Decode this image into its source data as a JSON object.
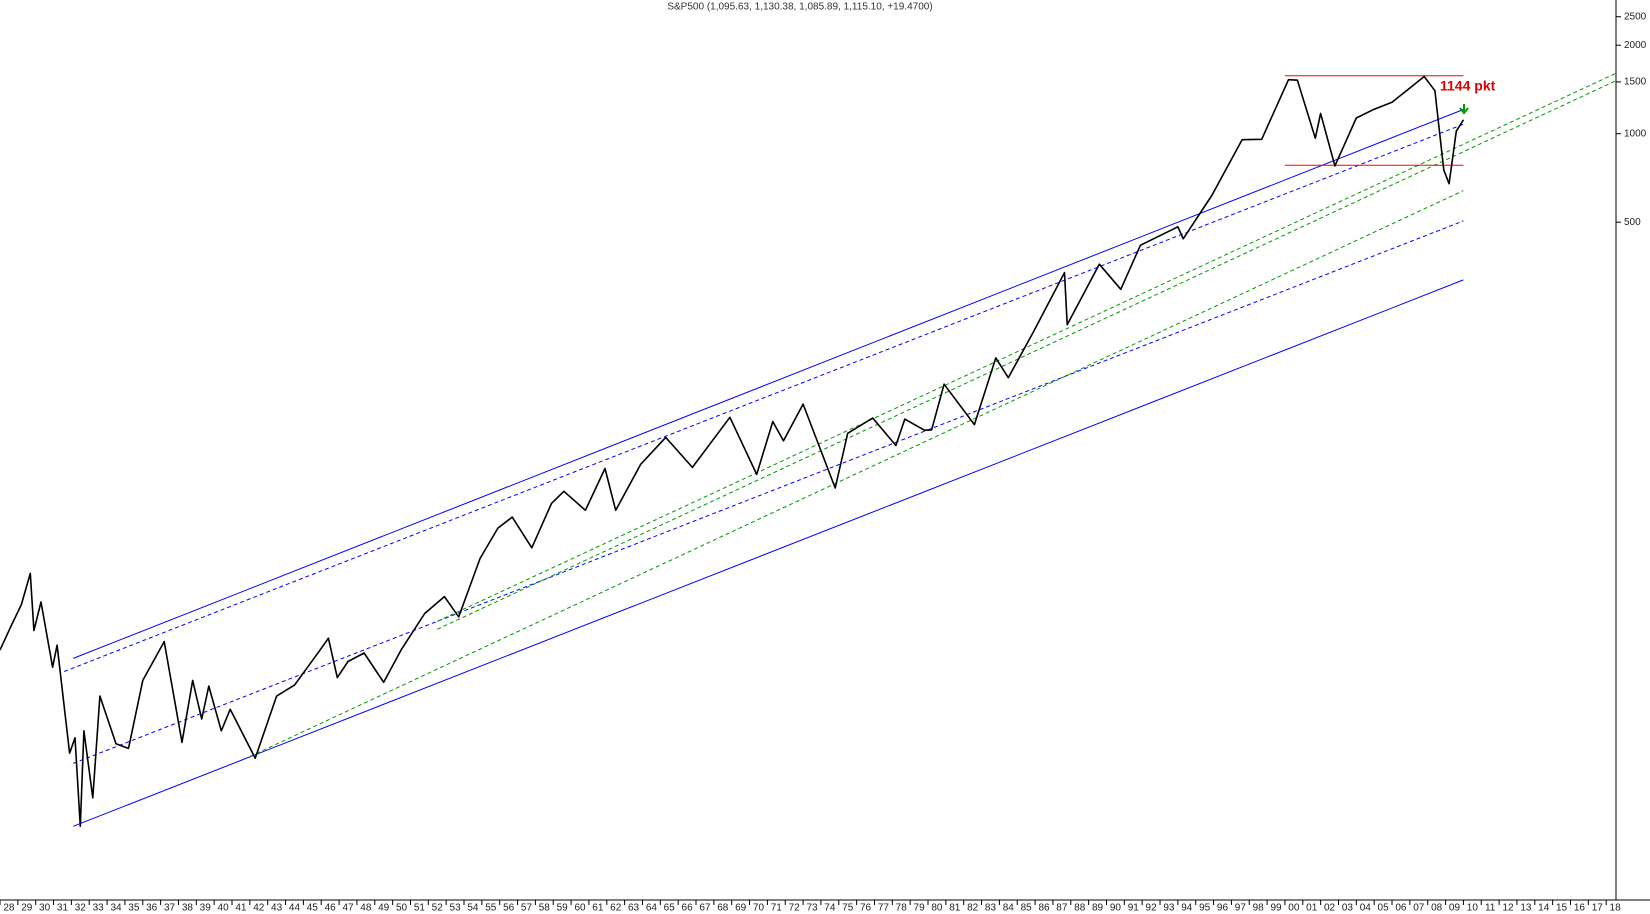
{
  "chart_data": {
    "type": "line",
    "title": "S&P500 (1,095.63, 1,130.38, 1,085.89, 1,115.10, +19.4700)",
    "log_scale": true,
    "grid": false,
    "xlim": [
      1928,
      2018.55
    ],
    "ylim": [
      2.47,
      2850
    ],
    "yticks": [
      500,
      1000,
      1500,
      2000,
      2500
    ],
    "xticks": [
      {
        "value": 1928,
        "label": "28"
      },
      {
        "value": 1929,
        "label": "29"
      },
      {
        "value": 1930,
        "label": "30"
      },
      {
        "value": 1931,
        "label": "31"
      },
      {
        "value": 1932,
        "label": "32"
      },
      {
        "value": 1933,
        "label": "33"
      },
      {
        "value": 1934,
        "label": "34"
      },
      {
        "value": 1935,
        "label": "35"
      },
      {
        "value": 1936,
        "label": "36"
      },
      {
        "value": 1937,
        "label": "37"
      },
      {
        "value": 1938,
        "label": "38"
      },
      {
        "value": 1939,
        "label": "39"
      },
      {
        "value": 1940,
        "label": "40"
      },
      {
        "value": 1941,
        "label": "41"
      },
      {
        "value": 1942,
        "label": "42"
      },
      {
        "value": 1943,
        "label": "43"
      },
      {
        "value": 1944,
        "label": "44"
      },
      {
        "value": 1945,
        "label": "45"
      },
      {
        "value": 1946,
        "label": "46"
      },
      {
        "value": 1947,
        "label": "47"
      },
      {
        "value": 1948,
        "label": "48"
      },
      {
        "value": 1949,
        "label": "49"
      },
      {
        "value": 1950,
        "label": "50"
      },
      {
        "value": 1951,
        "label": "51"
      },
      {
        "value": 1952,
        "label": "52"
      },
      {
        "value": 1953,
        "label": "53"
      },
      {
        "value": 1954,
        "label": "54"
      },
      {
        "value": 1955,
        "label": "55"
      },
      {
        "value": 1956,
        "label": "56"
      },
      {
        "value": 1957,
        "label": "57"
      },
      {
        "value": 1958,
        "label": "58"
      },
      {
        "value": 1959,
        "label": "59"
      },
      {
        "value": 1960,
        "label": "60"
      },
      {
        "value": 1961,
        "label": "61"
      },
      {
        "value": 1962,
        "label": "62"
      },
      {
        "value": 1963,
        "label": "63"
      },
      {
        "value": 1964,
        "label": "64"
      },
      {
        "value": 1965,
        "label": "65"
      },
      {
        "value": 1966,
        "label": "66"
      },
      {
        "value": 1967,
        "label": "67"
      },
      {
        "value": 1968,
        "label": "68"
      },
      {
        "value": 1969,
        "label": "69"
      },
      {
        "value": 1970,
        "label": "70"
      },
      {
        "value": 1971,
        "label": "71"
      },
      {
        "value": 1972,
        "label": "72"
      },
      {
        "value": 1973,
        "label": "73"
      },
      {
        "value": 1974,
        "label": "74"
      },
      {
        "value": 1975,
        "label": "75"
      },
      {
        "value": 1976,
        "label": "76"
      },
      {
        "value": 1977,
        "label": "77"
      },
      {
        "value": 1978,
        "label": "78"
      },
      {
        "value": 1979,
        "label": "79"
      },
      {
        "value": 1980,
        "label": "80"
      },
      {
        "value": 1981,
        "label": "81"
      },
      {
        "value": 1982,
        "label": "82"
      },
      {
        "value": 1983,
        "label": "83"
      },
      {
        "value": 1984,
        "label": "84"
      },
      {
        "value": 1985,
        "label": "85"
      },
      {
        "value": 1986,
        "label": "86"
      },
      {
        "value": 1987,
        "label": "87"
      },
      {
        "value": 1988,
        "label": "88"
      },
      {
        "value": 1989,
        "label": "89"
      },
      {
        "value": 1990,
        "label": "90"
      },
      {
        "value": 1991,
        "label": "91"
      },
      {
        "value": 1992,
        "label": "92"
      },
      {
        "value": 1993,
        "label": "93"
      },
      {
        "value": 1994,
        "label": "94"
      },
      {
        "value": 1995,
        "label": "95"
      },
      {
        "value": 1996,
        "label": "96"
      },
      {
        "value": 1997,
        "label": "97"
      },
      {
        "value": 1998,
        "label": "98"
      },
      {
        "value": 1999,
        "label": "99"
      },
      {
        "value": 2000,
        "label": "00"
      },
      {
        "value": 2001,
        "label": "01"
      },
      {
        "value": 2002,
        "label": "02"
      },
      {
        "value": 2003,
        "label": "03"
      },
      {
        "value": 2004,
        "label": "04"
      },
      {
        "value": 2005,
        "label": "05"
      },
      {
        "value": 2006,
        "label": "06"
      },
      {
        "value": 2007,
        "label": "07"
      },
      {
        "value": 2008,
        "label": "08"
      },
      {
        "value": 2009,
        "label": "09"
      },
      {
        "value": 2010,
        "label": "10"
      },
      {
        "value": 2011,
        "label": "11"
      },
      {
        "value": 2012,
        "label": "12"
      },
      {
        "value": 2013,
        "label": "13"
      },
      {
        "value": 2014,
        "label": "14"
      },
      {
        "value": 2015,
        "label": "15"
      },
      {
        "value": 2016,
        "label": "16"
      },
      {
        "value": 2017,
        "label": "17"
      },
      {
        "value": 2018,
        "label": "18"
      }
    ],
    "series": [
      {
        "color": "#000000",
        "x": [
          1928.0,
          1928.6,
          1929.2,
          1929.7,
          1929.9,
          1930.3,
          1930.95,
          1931.2,
          1931.9,
          1932.2,
          1932.5,
          1932.7,
          1933.2,
          1933.6,
          1934.5,
          1935.2,
          1936.0,
          1937.2,
          1938.2,
          1938.8,
          1939.3,
          1939.7,
          1940.4,
          1940.9,
          1942.3,
          1943.5,
          1944.5,
          1945.9,
          1946.4,
          1946.9,
          1947.5,
          1948.4,
          1949.5,
          1950.5,
          1951.8,
          1952.9,
          1953.7,
          1954.9,
          1955.9,
          1956.7,
          1957.8,
          1958.9,
          1959.6,
          1960.8,
          1961.9,
          1962.5,
          1963.9,
          1965.3,
          1966.8,
          1968.9,
          1970.4,
          1971.3,
          1971.9,
          1973.0,
          1974.8,
          1975.5,
          1976.9,
          1978.2,
          1978.7,
          1979.8,
          1980.2,
          1980.9,
          1982.6,
          1983.8,
          1984.5,
          1985.9,
          1987.65,
          1987.8,
          1989.6,
          1990.8,
          1991.9,
          1994.0,
          1994.3,
          1995.9,
          1997.6,
          1998.7,
          2000.2,
          2000.7,
          2001.7,
          2002.0,
          2002.8,
          2004.0,
          2005.0,
          2006.0,
          2007.0,
          2007.8,
          2008.4,
          2008.9,
          2009.2,
          2009.6,
          2010.0
        ],
        "values": [
          17.5,
          21.0,
          25.0,
          31.9,
          20.4,
          25.5,
          15.3,
          18.2,
          7.8,
          8.8,
          4.4,
          9.3,
          5.5,
          12.2,
          8.4,
          8.1,
          13.8,
          18.7,
          8.5,
          13.8,
          10.2,
          13.2,
          9.3,
          11.0,
          7.5,
          12.2,
          13.3,
          17.4,
          19.2,
          14.1,
          16.0,
          17.1,
          13.6,
          17.6,
          23.3,
          26.6,
          22.7,
          35.9,
          45.5,
          49.6,
          39.0,
          55.2,
          60.7,
          52.3,
          72.6,
          52.3,
          75.0,
          92.6,
          73.2,
          108.4,
          69.3,
          104.8,
          90.2,
          120.2,
          62.3,
          95.6,
          107.8,
          86.9,
          106.9,
          98.0,
          98.2,
          140.5,
          102.4,
          172.7,
          147.8,
          211.3,
          336.8,
          223.9,
          359.8,
          295.5,
          417.0,
          482.0,
          438.9,
          615.9,
          954.0,
          957.0,
          1527.0,
          1520.0,
          965.0,
          1172.0,
          776.8,
          1131.0,
          1211.0,
          1280.0,
          1430.0,
          1565.0,
          1400.0,
          752.0,
          676.0,
          1020.0,
          1115.0
        ]
      }
    ],
    "trendlines": [
      {
        "x": [
          1932.1,
          2010.0
        ],
        "values": [
          16.4,
          1209
        ],
        "color": "#0000ff",
        "dashed": false
      },
      {
        "x": [
          1932.1,
          2010.0
        ],
        "values": [
          4.4,
          318
        ],
        "color": "#0000ff",
        "dashed": false
      },
      {
        "x": [
          1931.6,
          2010.0
        ],
        "values": [
          14.8,
          1077
        ],
        "color": "#0000ff",
        "dashed": true
      },
      {
        "x": [
          1932.1,
          2010.0
        ],
        "values": [
          7.2,
          505
        ],
        "color": "#0000ff",
        "dashed": true
      },
      {
        "x": [
          1942.0,
          2010.0
        ],
        "values": [
          7.6,
          640
        ],
        "color": "#009900",
        "dashed": true
      },
      {
        "x": [
          1952.5,
          2018.5
        ],
        "values": [
          21.9,
          1600
        ],
        "color": "#009900",
        "dashed": true
      },
      {
        "x": [
          1952.5,
          2018.5
        ],
        "values": [
          20.6,
          1510
        ],
        "color": "#009900",
        "dashed": true
      },
      {
        "x": [
          2000.0,
          2010.0
        ],
        "values": [
          1574,
          1574
        ],
        "color": "#ff0000",
        "dashed": false
      },
      {
        "x": [
          2000.0,
          2010.0
        ],
        "values": [
          781,
          781
        ],
        "color": "#ff0000",
        "dashed": false
      }
    ],
    "annotation": "1144 pkt"
  }
}
